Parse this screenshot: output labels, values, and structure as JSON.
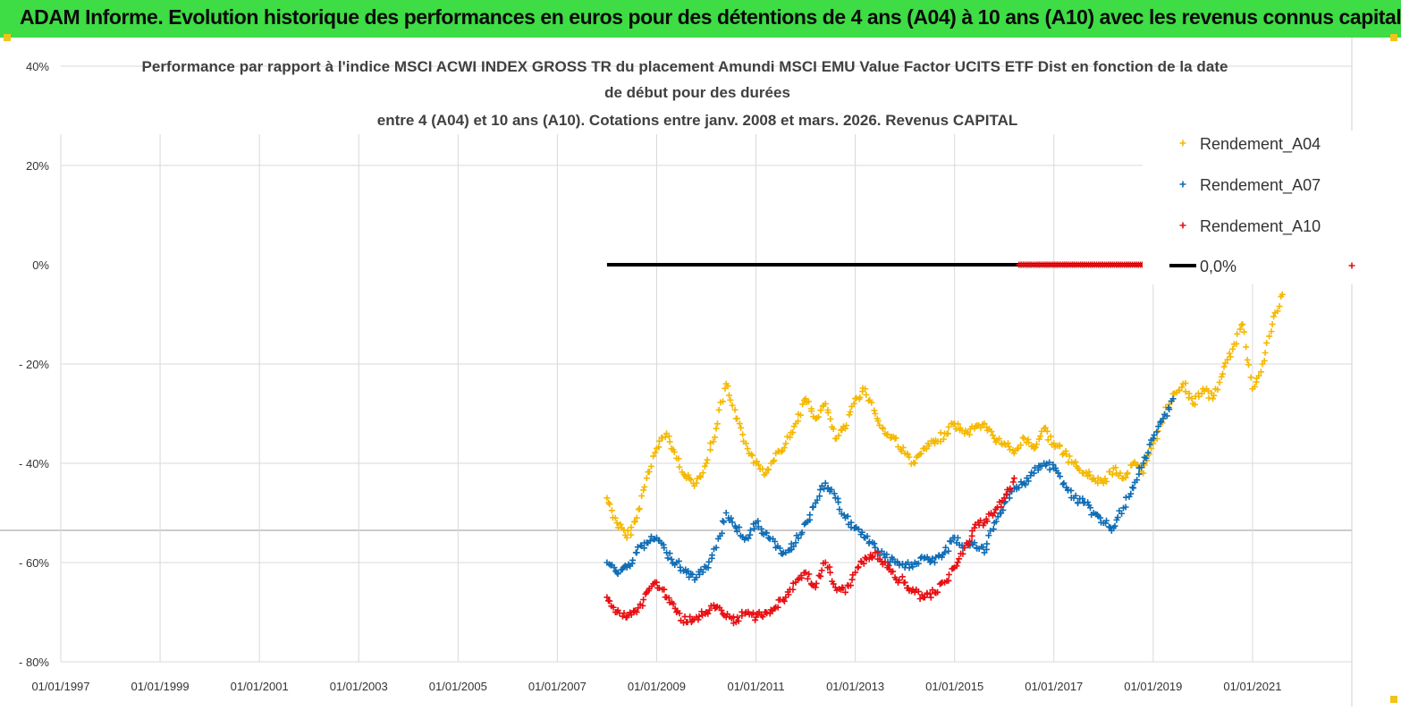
{
  "header": {
    "banner_text": "ADAM Informe. Evolution historique des performances en euros pour des détentions de 4 ans (A04) à 10 ans (A10) avec les revenus connus capitalisés"
  },
  "colors": {
    "banner": "#3edc45",
    "a04": "#f5b800",
    "a07": "#0f6db5",
    "a10": "#e80f12",
    "zero_line": "#000000"
  },
  "chart_data": {
    "type": "scatter",
    "title_lines": [
      "Performance par rapport à l'indice MSCI ACWI INDEX GROSS TR  du placement Amundi MSCI EMU Value Factor UCITS ETF Dist en fonction de la date",
      "de début pour des durées",
      "entre 4 (A04) et 10 ans (A10). Cotations entre janv. 2008 et mars. 2026. Revenus CAPITAL"
    ],
    "y_ticks": [
      {
        "value": 40,
        "label": "40%"
      },
      {
        "value": 20,
        "label": "20%"
      },
      {
        "value": 0,
        "label": "0%"
      },
      {
        "value": -20,
        "label": "- 20%"
      },
      {
        "value": -40,
        "label": "- 40%"
      },
      {
        "value": -60,
        "label": "- 60%"
      },
      {
        "value": -80,
        "label": "- 80%"
      }
    ],
    "ylim": [
      -80,
      40
    ],
    "x_ticks": [
      {
        "value": 1997,
        "label": "01/01/1997"
      },
      {
        "value": 1999,
        "label": "01/01/1999"
      },
      {
        "value": 2001,
        "label": "01/01/2001"
      },
      {
        "value": 2003,
        "label": "01/01/2003"
      },
      {
        "value": 2005,
        "label": "01/01/2005"
      },
      {
        "value": 2007,
        "label": "01/01/2007"
      },
      {
        "value": 2009,
        "label": "01/01/2009"
      },
      {
        "value": 2011,
        "label": "01/01/2011"
      },
      {
        "value": 2013,
        "label": "01/01/2013"
      },
      {
        "value": 2015,
        "label": "01/01/2015"
      },
      {
        "value": 2017,
        "label": "01/01/2017"
      },
      {
        "value": 2019,
        "label": "01/01/2019"
      },
      {
        "value": 2021,
        "label": "01/01/2021"
      }
    ],
    "xlim": [
      1997,
      2023
    ],
    "legend": [
      {
        "key": "a04",
        "label": "Rendement_A04"
      },
      {
        "key": "a07",
        "label": "Rendement_A07"
      },
      {
        "key": "a10",
        "label": "Rendement_A10"
      },
      {
        "key": "zero",
        "label": "0,0%"
      }
    ],
    "series": [
      {
        "name": "Rendement_A04",
        "color": "#f5b800",
        "x": [
          2008.0,
          2008.2,
          2008.4,
          2008.6,
          2008.8,
          2009.0,
          2009.2,
          2009.4,
          2009.6,
          2009.8,
          2010.0,
          2010.2,
          2010.4,
          2010.6,
          2010.8,
          2011.0,
          2011.2,
          2011.4,
          2011.6,
          2011.8,
          2012.0,
          2012.2,
          2012.4,
          2012.6,
          2012.8,
          2013.0,
          2013.2,
          2013.4,
          2013.6,
          2013.8,
          2014.0,
          2014.2,
          2014.4,
          2014.6,
          2014.8,
          2015.0,
          2015.2,
          2015.4,
          2015.6,
          2015.8,
          2016.0,
          2016.2,
          2016.4,
          2016.6,
          2016.8,
          2017.0,
          2017.2,
          2017.4,
          2017.6,
          2017.8,
          2018.0,
          2018.2,
          2018.4,
          2018.6,
          2018.8,
          2019.0,
          2019.2,
          2019.4,
          2019.6,
          2019.8,
          2020.0,
          2020.2,
          2020.4,
          2020.6,
          2020.8,
          2021.0,
          2021.2,
          2021.4,
          2021.6
        ],
        "values": [
          -47,
          -52,
          -55,
          -51,
          -43,
          -37,
          -34,
          -39,
          -43,
          -44,
          -40,
          -33,
          -24,
          -31,
          -36,
          -40,
          -42,
          -38,
          -36,
          -32,
          -27,
          -31,
          -28,
          -35,
          -33,
          -27,
          -25,
          -30,
          -34,
          -35,
          -38,
          -40,
          -37,
          -36,
          -34,
          -32,
          -34,
          -33,
          -32,
          -35,
          -36,
          -38,
          -35,
          -37,
          -33,
          -36,
          -38,
          -40,
          -42,
          -43,
          -44,
          -41,
          -43,
          -40,
          -42,
          -36,
          -31,
          -26,
          -24,
          -28,
          -25,
          -27,
          -22,
          -17,
          -12,
          -25,
          -20,
          -12,
          -6
        ]
      },
      {
        "name": "Rendement_A07",
        "color": "#0f6db5",
        "x": [
          2008.0,
          2008.2,
          2008.4,
          2008.6,
          2008.8,
          2009.0,
          2009.2,
          2009.4,
          2009.6,
          2009.8,
          2010.0,
          2010.2,
          2010.4,
          2010.6,
          2010.8,
          2011.0,
          2011.2,
          2011.4,
          2011.6,
          2011.8,
          2012.0,
          2012.2,
          2012.4,
          2012.6,
          2012.8,
          2013.0,
          2013.2,
          2013.4,
          2013.6,
          2013.8,
          2014.0,
          2014.2,
          2014.4,
          2014.6,
          2014.8,
          2015.0,
          2015.2,
          2015.4,
          2015.6,
          2015.8,
          2016.0,
          2016.2,
          2016.4,
          2016.6,
          2016.8,
          2017.0,
          2017.2,
          2017.4,
          2017.6,
          2017.8,
          2018.0,
          2018.2,
          2018.4,
          2018.6,
          2018.8,
          2019.0,
          2019.2,
          2019.4
        ],
        "values": [
          -60,
          -62,
          -61,
          -58,
          -56,
          -55,
          -58,
          -60,
          -62,
          -63,
          -61,
          -57,
          -50,
          -53,
          -55,
          -52,
          -54,
          -57,
          -58,
          -56,
          -52,
          -48,
          -44,
          -47,
          -51,
          -53,
          -55,
          -57,
          -59,
          -60,
          -61,
          -60,
          -59,
          -60,
          -58,
          -55,
          -57,
          -56,
          -58,
          -52,
          -48,
          -45,
          -44,
          -42,
          -40,
          -41,
          -44,
          -47,
          -48,
          -50,
          -52,
          -53,
          -49,
          -45,
          -40,
          -35,
          -31,
          -27
        ]
      },
      {
        "name": "Rendement_A10",
        "color": "#e80f12",
        "x": [
          2008.0,
          2008.2,
          2008.4,
          2008.6,
          2008.8,
          2009.0,
          2009.2,
          2009.4,
          2009.6,
          2009.8,
          2010.0,
          2010.2,
          2010.4,
          2010.6,
          2010.8,
          2011.0,
          2011.2,
          2011.4,
          2011.6,
          2011.8,
          2012.0,
          2012.2,
          2012.4,
          2012.6,
          2012.8,
          2013.0,
          2013.2,
          2013.4,
          2013.6,
          2013.8,
          2014.0,
          2014.2,
          2014.4,
          2014.6,
          2014.8,
          2015.0,
          2015.2,
          2015.4,
          2015.6,
          2015.8,
          2016.0,
          2016.2
        ],
        "values": [
          -67,
          -70,
          -71,
          -70,
          -66,
          -64,
          -67,
          -70,
          -72,
          -71,
          -70,
          -69,
          -71,
          -72,
          -70,
          -71,
          -70,
          -69,
          -67,
          -64,
          -62,
          -65,
          -60,
          -65,
          -66,
          -62,
          -59,
          -58,
          -60,
          -63,
          -64,
          -66,
          -67,
          -66,
          -64,
          -61,
          -57,
          -53,
          -52,
          -50,
          -47,
          -43
        ]
      },
      {
        "name": "0,0%",
        "color": "#000000",
        "x": [
          2008.0,
          2019.0
        ],
        "values": [
          0,
          0
        ]
      }
    ]
  }
}
